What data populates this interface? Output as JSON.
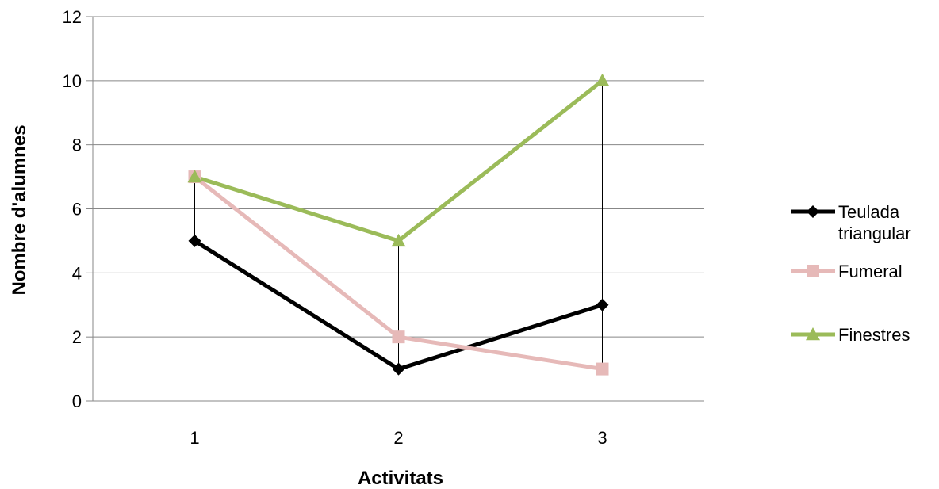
{
  "chart_data": {
    "type": "line",
    "title": "",
    "xlabel": "Activitats",
    "ylabel": "Nombre d'alumnes",
    "categories": [
      "1",
      "2",
      "3"
    ],
    "ylim": [
      0,
      12
    ],
    "yticks": [
      "0",
      "2",
      "4",
      "6",
      "8",
      "10",
      "12"
    ],
    "grid": "horizontal",
    "high_low_lines": true,
    "legend": {
      "position": "right",
      "entries": [
        {
          "label_lines": [
            "Teulada",
            "triangular"
          ],
          "series": "Teulada triangular"
        },
        {
          "label_lines": [
            "Fumeral"
          ],
          "series": "Fumeral"
        },
        {
          "label_lines": [
            "Finestres"
          ],
          "series": "Finestres"
        }
      ]
    },
    "series": [
      {
        "name": "Teulada triangular",
        "values": [
          5,
          1,
          3
        ],
        "color": "#000000",
        "marker": "diamond"
      },
      {
        "name": "Fumeral",
        "values": [
          7,
          2,
          1
        ],
        "color": "#e6b9b8",
        "marker": "square"
      },
      {
        "name": "Finestres",
        "values": [
          7,
          5,
          10
        ],
        "color": "#9bbb59",
        "marker": "triangle"
      }
    ]
  }
}
